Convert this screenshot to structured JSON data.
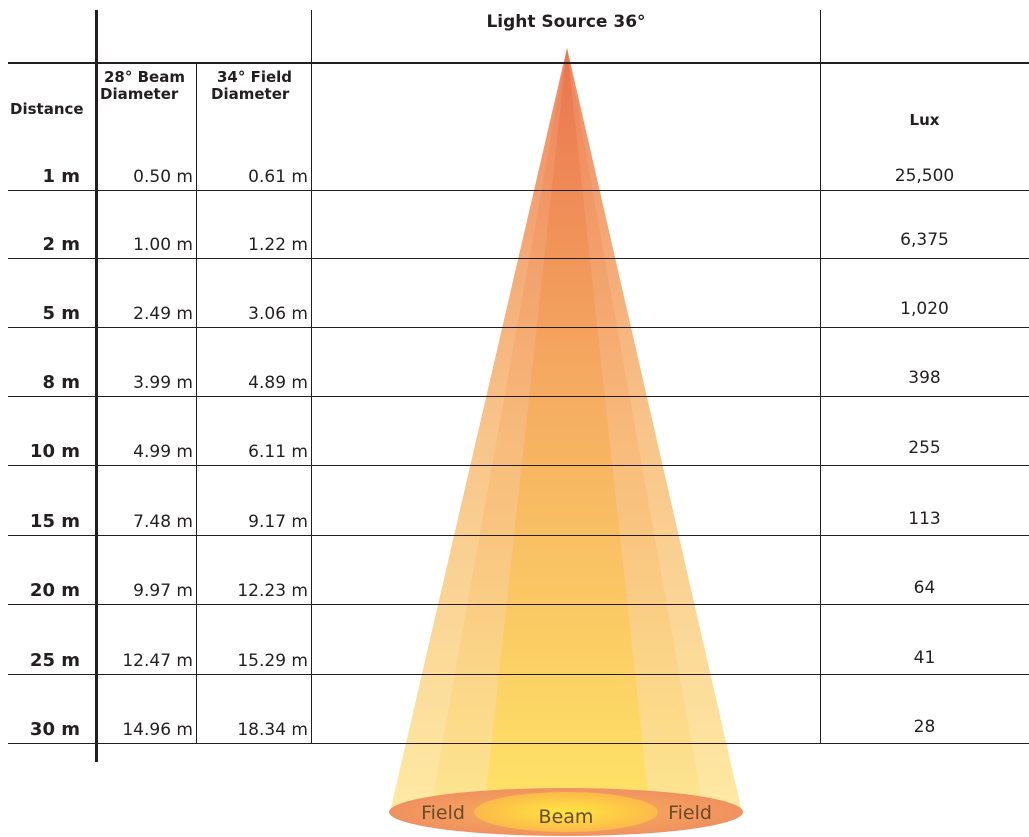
{
  "title": "Light Source 36°",
  "headers": {
    "distance": "Distance",
    "beam_line1": "28° Beam",
    "beam_line2": "Diameter",
    "field_line1": "34° Field",
    "field_line2": "Diameter",
    "lux": "Lux"
  },
  "rows": [
    {
      "distance": "1 m",
      "beam": "0.50 m",
      "field": "0.61 m",
      "lux": "25,500"
    },
    {
      "distance": "2 m",
      "beam": "1.00 m",
      "field": "1.22 m",
      "lux": "6,375"
    },
    {
      "distance": "5 m",
      "beam": "2.49 m",
      "field": "3.06 m",
      "lux": "1,020"
    },
    {
      "distance": "8 m",
      "beam": "3.99 m",
      "field": "4.89 m",
      "lux": "398"
    },
    {
      "distance": "10 m",
      "beam": "4.99 m",
      "field": "6.11 m",
      "lux": "255"
    },
    {
      "distance": "15 m",
      "beam": "7.48 m",
      "field": "9.17 m",
      "lux": "113"
    },
    {
      "distance": "20 m",
      "beam": "9.97 m",
      "field": "12.23 m",
      "lux": "64"
    },
    {
      "distance": "25 m",
      "beam": "12.47 m",
      "field": "15.29 m",
      "lux": "41"
    },
    {
      "distance": "30 m",
      "beam": "14.96 m",
      "field": "18.34 m",
      "lux": "28"
    }
  ],
  "cone_labels": {
    "field_left": "Field",
    "beam": "Beam",
    "field_right": "Field"
  },
  "colors": {
    "outer_top": "#ef8a60",
    "outer_bottom": "#fde59a",
    "inner_top": "#ec7a52",
    "inner_bottom": "#ffe46a",
    "ellipse_outer": "#f29a63",
    "ellipse_inner": "#fdc84a"
  }
}
